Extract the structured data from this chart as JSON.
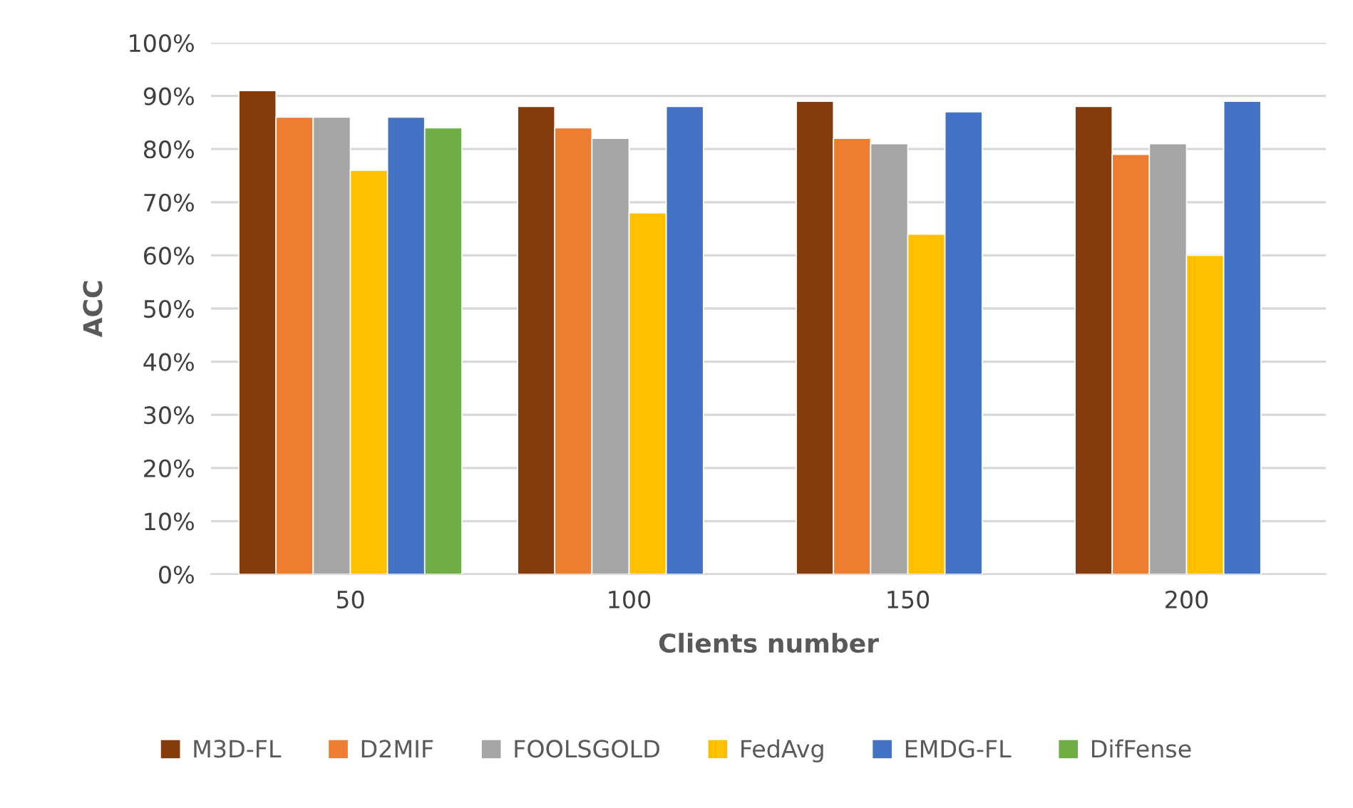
{
  "chart_data": {
    "type": "bar",
    "xlabel": "Clients number",
    "ylabel": "ACC",
    "categories": [
      "50",
      "100",
      "150",
      "200"
    ],
    "series": [
      {
        "name": "M3D-FL",
        "color": "#843c0c",
        "values": [
          91,
          88,
          89,
          88
        ]
      },
      {
        "name": "D2MIF",
        "color": "#ed7d31",
        "values": [
          86,
          84,
          82,
          79
        ]
      },
      {
        "name": "FOOLSGOLD",
        "color": "#a5a5a5",
        "values": [
          86,
          82,
          81,
          81
        ]
      },
      {
        "name": "FedAvg",
        "color": "#ffc000",
        "values": [
          76,
          68,
          64,
          60
        ]
      },
      {
        "name": "EMDG-FL",
        "color": "#4472c4",
        "values": [
          86,
          88,
          87,
          89
        ]
      },
      {
        "name": "DifFense",
        "color": "#70ad47",
        "values": [
          84,
          null,
          null,
          null
        ]
      }
    ],
    "ylim": [
      0,
      100
    ],
    "yticks": [
      {
        "value": 0,
        "label": "0%"
      },
      {
        "value": 10,
        "label": "10%"
      },
      {
        "value": 20,
        "label": "20%"
      },
      {
        "value": 30,
        "label": "30%"
      },
      {
        "value": 40,
        "label": "40%"
      },
      {
        "value": 50,
        "label": "50%"
      },
      {
        "value": 60,
        "label": "60%"
      },
      {
        "value": 70,
        "label": "70%"
      },
      {
        "value": 80,
        "label": "80%"
      },
      {
        "value": 90,
        "label": "90%"
      },
      {
        "value": 100,
        "label": "100%"
      }
    ],
    "grid": "y",
    "legend": "bottom"
  }
}
